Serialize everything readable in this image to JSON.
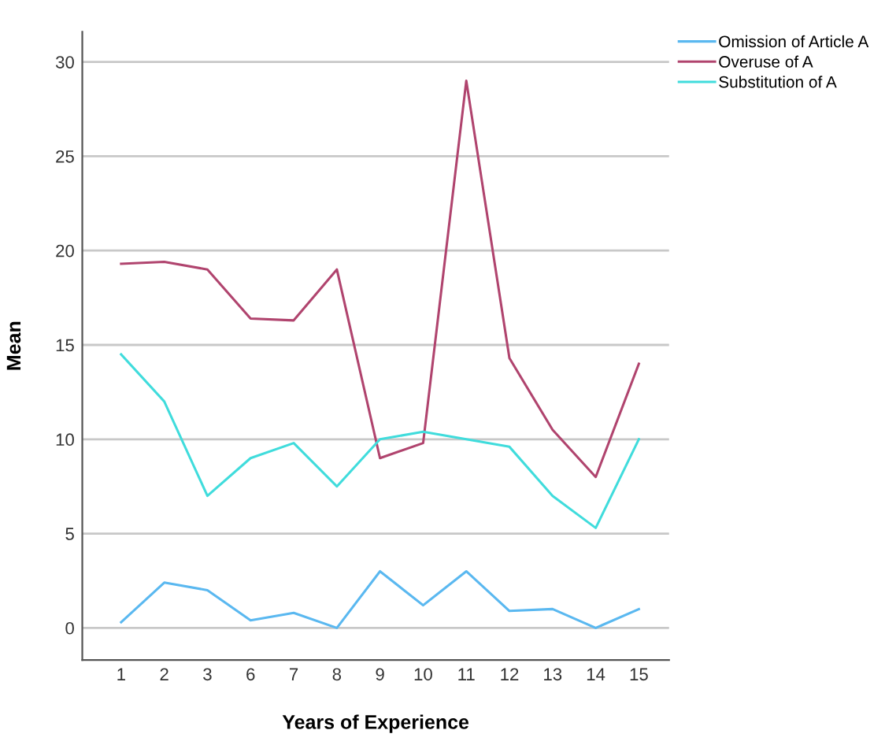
{
  "chart_data": {
    "type": "line",
    "xlabel": "Years of Experience",
    "ylabel": "Mean",
    "categories": [
      "1",
      "2",
      "3",
      "6",
      "7",
      "8",
      "9",
      "10",
      "11",
      "12",
      "13",
      "14",
      "15"
    ],
    "series": [
      {
        "name": "Omission of Article A",
        "color": "#5ab8f0",
        "values": [
          0.3,
          2.4,
          2.0,
          0.4,
          0.8,
          0.0,
          3.0,
          1.2,
          3.0,
          0.9,
          1.0,
          0.0,
          1.0
        ]
      },
      {
        "name": "Overuse of A",
        "color": "#b0446e",
        "values": [
          19.3,
          19.4,
          19.0,
          16.4,
          16.3,
          19.0,
          9.0,
          9.8,
          29.0,
          14.3,
          10.5,
          8.0,
          14.0
        ]
      },
      {
        "name": "Substitution of A",
        "color": "#40dcdc",
        "values": [
          14.5,
          12.0,
          7.0,
          9.0,
          9.8,
          7.5,
          10.0,
          10.4,
          10.0,
          9.6,
          7.0,
          5.3,
          10.0
        ]
      }
    ],
    "ylim": [
      -1.7,
      31.6
    ],
    "yticks": [
      0,
      5,
      10,
      15,
      20,
      25,
      30
    ],
    "grid": "y",
    "legend": "top right",
    "marker": "none",
    "line_style": "solid"
  }
}
